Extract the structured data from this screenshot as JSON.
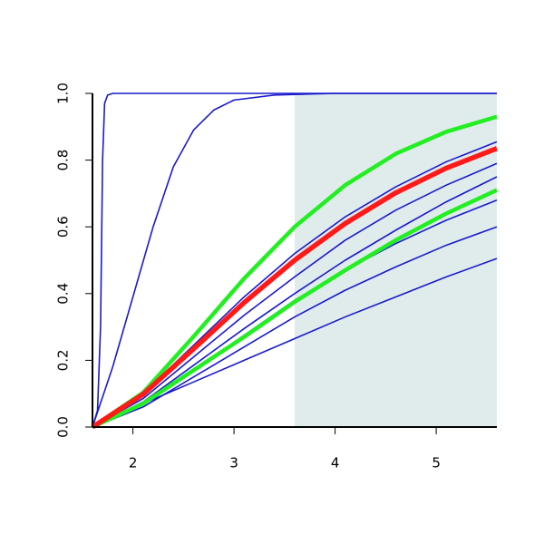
{
  "chart_data": {
    "type": "line",
    "x": [
      1.6,
      2.1,
      2.6,
      3.1,
      3.6,
      4.1,
      4.6,
      5.1,
      5.6
    ],
    "xlim": [
      1.6,
      5.6
    ],
    "ylim": [
      0,
      1
    ],
    "xticks": [
      2,
      3,
      4,
      5
    ],
    "yticks": [
      {
        "value": 0,
        "label": "0.0"
      },
      0.2,
      0.4,
      0.6,
      0.8,
      {
        "value": 1,
        "label": "1.0"
      }
    ],
    "shade": {
      "range": [
        3.6,
        5.6
      ],
      "color": "#e0ecec"
    },
    "series": [
      {
        "color": "#1a1acc",
        "width": 1.6,
        "x": [
          1.6,
          1.65,
          1.68,
          1.7,
          1.72,
          1.75,
          1.8,
          5.6
        ],
        "values": [
          0,
          0.05,
          0.3,
          0.8,
          0.97,
          0.995,
          1,
          1
        ]
      },
      {
        "color": "#1a1acc",
        "width": 1.6,
        "x": [
          1.6,
          1.8,
          2.0,
          2.2,
          2.4,
          2.6,
          2.8,
          3.0,
          3.4,
          4.0,
          5.6
        ],
        "values": [
          0,
          0.18,
          0.39,
          0.6,
          0.78,
          0.89,
          0.95,
          0.98,
          0.995,
          1,
          1
        ]
      },
      {
        "color": "#1a1acc",
        "width": 1.6,
        "values": [
          0,
          0.1,
          0.245,
          0.39,
          0.52,
          0.63,
          0.72,
          0.795,
          0.855
        ]
      },
      {
        "color": "#1a1acc",
        "width": 1.6,
        "values": [
          0,
          0.085,
          0.21,
          0.335,
          0.45,
          0.56,
          0.65,
          0.725,
          0.79
        ]
      },
      {
        "color": "#1a1acc",
        "width": 1.6,
        "values": [
          0,
          0.075,
          0.185,
          0.295,
          0.4,
          0.5,
          0.59,
          0.675,
          0.75
        ]
      },
      {
        "color": "#1a1acc",
        "width": 1.6,
        "values": [
          0,
          0.07,
          0.17,
          0.275,
          0.38,
          0.47,
          0.55,
          0.62,
          0.68
        ]
      },
      {
        "color": "#1a1acc",
        "width": 1.6,
        "values": [
          0,
          0.06,
          0.15,
          0.24,
          0.33,
          0.41,
          0.48,
          0.545,
          0.6
        ]
      },
      {
        "color": "#1a1acc",
        "width": 1.6,
        "values": [
          0,
          0.07,
          0.135,
          0.2,
          0.265,
          0.33,
          0.39,
          0.45,
          0.505
        ]
      },
      {
        "color": "#22ee22",
        "width": 4.5,
        "values": [
          0,
          0.103,
          0.271,
          0.445,
          0.6,
          0.725,
          0.819,
          0.885,
          0.93
        ]
      },
      {
        "color": "#22ee22",
        "width": 4.5,
        "values": [
          0,
          0.07,
          0.17,
          0.27,
          0.375,
          0.47,
          0.56,
          0.64,
          0.71
        ]
      },
      {
        "color": "#ff1a1a",
        "width": 5.5,
        "values": [
          0,
          0.098,
          0.234,
          0.373,
          0.5,
          0.61,
          0.702,
          0.776,
          0.835
        ]
      }
    ]
  }
}
